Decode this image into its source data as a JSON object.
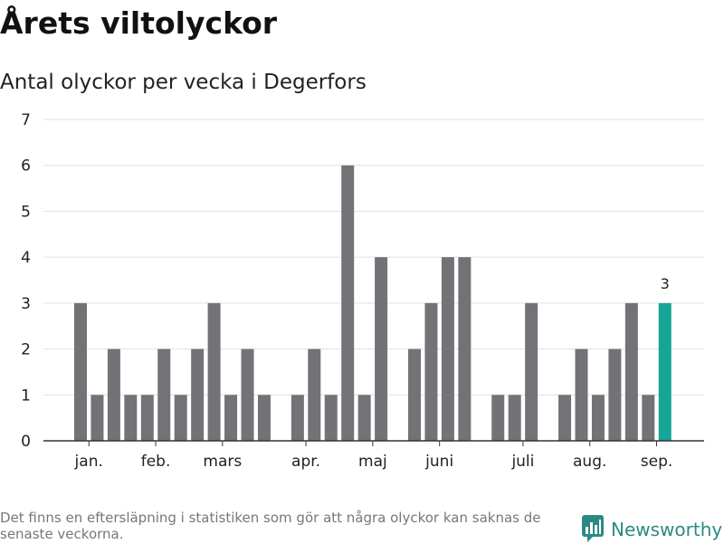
{
  "header": {
    "title": "Årets viltolyckor",
    "subtitle": "Antal olyckor per vecka i Degerfors"
  },
  "footer": {
    "note": "Det finns en eftersläpning i statistiken som gör att några olyckor kan saknas de senaste veckorna.",
    "brand": "Newsworthy"
  },
  "colors": {
    "bar": "#737276",
    "highlight": "#16a597",
    "grid": "#e0e0e0",
    "axis": "#333333",
    "brand": "#2a8b83"
  },
  "chart_data": {
    "type": "bar",
    "weeks": [
      1,
      2,
      3,
      4,
      5,
      6,
      7,
      8,
      9,
      10,
      11,
      12,
      13,
      14,
      15,
      16,
      17,
      18,
      19,
      20,
      21,
      22,
      23,
      24,
      25,
      26,
      27,
      28,
      29,
      30,
      31,
      32,
      33,
      34,
      35,
      36,
      37,
      38,
      39
    ],
    "values": [
      3,
      1,
      2,
      1,
      1,
      2,
      1,
      2,
      3,
      1,
      2,
      1,
      0,
      1,
      2,
      1,
      6,
      1,
      4,
      0,
      2,
      3,
      4,
      4,
      0,
      1,
      1,
      3,
      0,
      1,
      2,
      1,
      2,
      3,
      1,
      3,
      null,
      null,
      null
    ],
    "highlight_index": 35,
    "highlight_label": "3",
    "month_labels": [
      {
        "label": "jan.",
        "week": 1.5
      },
      {
        "label": "feb.",
        "week": 5.5
      },
      {
        "label": "mars",
        "week": 9.5
      },
      {
        "label": "apr.",
        "week": 14.5
      },
      {
        "label": "maj",
        "week": 18.5
      },
      {
        "label": "juni",
        "week": 22.5
      },
      {
        "label": "juli",
        "week": 27.5
      },
      {
        "label": "aug.",
        "week": 31.5
      },
      {
        "label": "sep.",
        "week": 35.5
      }
    ],
    "yticks": [
      0,
      1,
      2,
      3,
      4,
      5,
      6,
      7
    ],
    "ylim": [
      0,
      7
    ],
    "grid": true
  }
}
